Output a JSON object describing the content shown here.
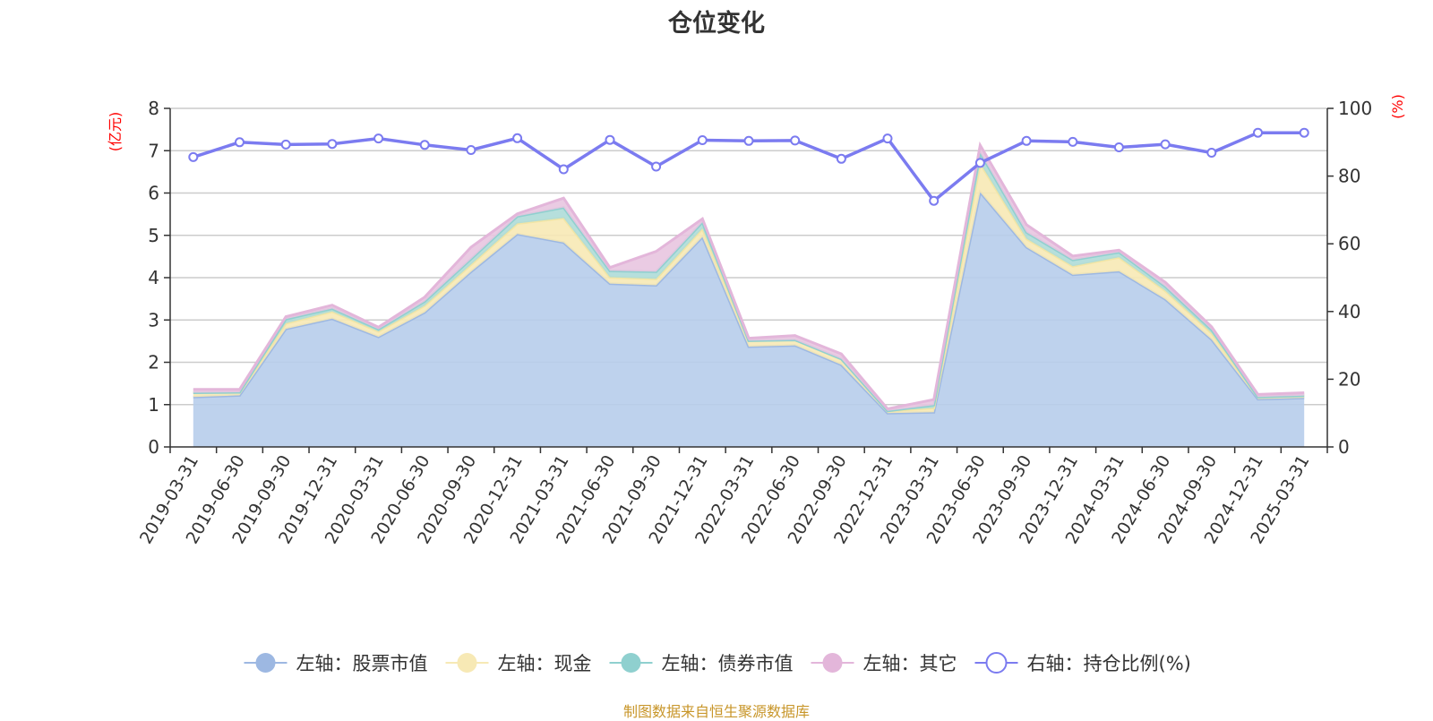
{
  "chart_data": {
    "type": "area",
    "title": "仓位变化",
    "x": [
      "2019-03-31",
      "2019-06-30",
      "2019-09-30",
      "2019-12-31",
      "2020-03-31",
      "2020-06-30",
      "2020-09-30",
      "2020-12-31",
      "2021-03-31",
      "2021-06-30",
      "2021-09-30",
      "2021-12-31",
      "2022-03-31",
      "2022-06-30",
      "2022-09-30",
      "2022-12-31",
      "2023-03-31",
      "2023-06-30",
      "2023-09-30",
      "2023-12-31",
      "2024-03-31",
      "2024-06-30",
      "2024-09-30",
      "2024-12-31",
      "2025-03-31"
    ],
    "left_axis": {
      "unit_label": "(亿元)",
      "ylim": [
        0,
        8
      ],
      "ticks": [
        "0",
        "1",
        "2",
        "3",
        "4",
        "5",
        "6",
        "7",
        "8"
      ]
    },
    "right_axis": {
      "unit_label": "(%)",
      "ylim": [
        0,
        100
      ],
      "ticks": [
        "0",
        "20",
        "40",
        "60",
        "80",
        "100"
      ]
    },
    "stacked_series": [
      {
        "name": "左轴：股票市值",
        "color": "#9db8e2",
        "fill": "#b7cdeb",
        "values": [
          1.18,
          1.22,
          2.79,
          3.03,
          2.6,
          3.18,
          4.14,
          5.03,
          4.83,
          3.86,
          3.82,
          4.96,
          2.37,
          2.4,
          1.94,
          0.8,
          0.82,
          6.02,
          4.72,
          4.07,
          4.15,
          3.49,
          2.54,
          1.13,
          1.16
        ]
      },
      {
        "name": "左轴：现金",
        "color": "#f2e5a5",
        "fill": "#f7e9b5",
        "values": [
          0.1,
          0.07,
          0.13,
          0.17,
          0.13,
          0.16,
          0.17,
          0.25,
          0.58,
          0.15,
          0.15,
          0.2,
          0.14,
          0.13,
          0.14,
          0.05,
          0.1,
          0.68,
          0.2,
          0.2,
          0.33,
          0.2,
          0.15,
          0.05,
          0.05
        ]
      },
      {
        "name": "左轴：债券市值",
        "color": "#8fd0cf",
        "fill": "#aedcd8",
        "values": [
          0.0,
          0.0,
          0.1,
          0.07,
          0.05,
          0.1,
          0.13,
          0.17,
          0.25,
          0.15,
          0.17,
          0.15,
          0.0,
          0.0,
          0.0,
          0.0,
          0.07,
          0.25,
          0.15,
          0.15,
          0.12,
          0.1,
          0.08,
          0.0,
          0.0
        ]
      },
      {
        "name": "左轴：其它",
        "color": "#e3b6da",
        "fill": "#e8c5e0",
        "values": [
          0.08,
          0.07,
          0.06,
          0.08,
          0.05,
          0.1,
          0.28,
          0.06,
          0.22,
          0.08,
          0.48,
          0.08,
          0.06,
          0.1,
          0.12,
          0.05,
          0.13,
          0.18,
          0.18,
          0.09,
          0.05,
          0.1,
          0.07,
          0.06,
          0.07
        ]
      }
    ],
    "line_series": {
      "name": "右轴：持仓比例(%)",
      "color": "#7b7bf0",
      "axis": "right",
      "values": [
        85.6,
        90.0,
        89.3,
        89.5,
        91.1,
        89.2,
        87.7,
        91.2,
        82.0,
        90.7,
        82.8,
        90.6,
        90.4,
        90.5,
        85.1,
        91.1,
        72.7,
        83.9,
        90.4,
        90.1,
        88.5,
        89.4,
        86.9,
        92.8,
        92.8
      ]
    },
    "grid": true,
    "legend_position": "bottom"
  },
  "legend": [
    {
      "label": "左轴：股票市值",
      "color": "#9db8e2",
      "hollow": false
    },
    {
      "label": "左轴：现金",
      "color": "#f7e9b5",
      "hollow": false
    },
    {
      "label": "左轴：债券市值",
      "color": "#8fd0cf",
      "hollow": false
    },
    {
      "label": "左轴：其它",
      "color": "#e3b6da",
      "hollow": false
    },
    {
      "label": "右轴：持仓比例(%)",
      "color": "#7b7bf0",
      "hollow": true
    }
  ],
  "source_note": "制图数据来自恒生聚源数据库"
}
